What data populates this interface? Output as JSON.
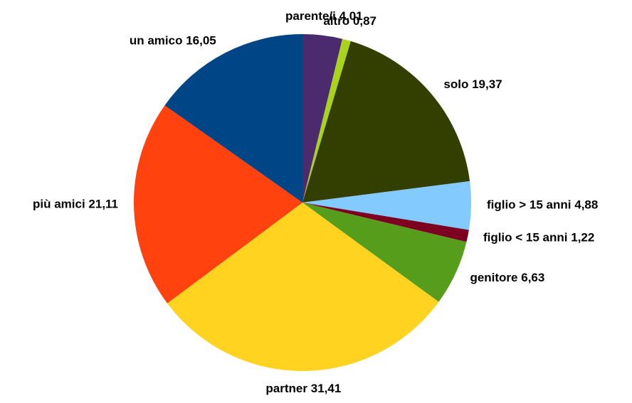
{
  "chart_data": {
    "type": "pie",
    "categories": [
      "parente/i",
      "altro",
      "solo",
      "figlio > 15 anni",
      "figlio < 15 anni",
      "genitore",
      "partner",
      "più amici",
      "un amico"
    ],
    "values": [
      4.01,
      0.87,
      19.37,
      4.88,
      1.22,
      6.63,
      31.41,
      21.11,
      16.05
    ],
    "value_labels": [
      "4,01",
      "0,87",
      "19,37",
      "4,88",
      "1,22",
      "6,63",
      "31,41",
      "21,11",
      "16,05"
    ],
    "colors": [
      "#4b2a6e",
      "#aad31c",
      "#333f00",
      "#83caff",
      "#7e0021",
      "#579d1c",
      "#ffd320",
      "#ff420e",
      "#004586"
    ]
  }
}
